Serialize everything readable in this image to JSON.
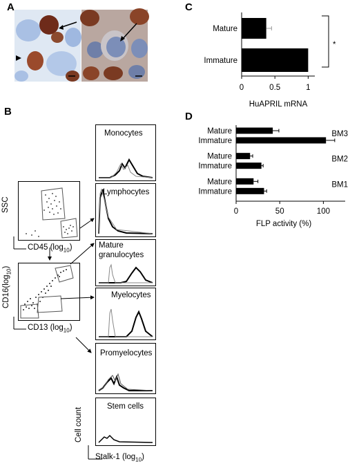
{
  "panels": {
    "a": "A",
    "b": "B",
    "c": "C",
    "d": "D"
  },
  "panel_b": {
    "dot_plot_1": {
      "ylabel": "SSC",
      "xlabel_main": "CD45 (log",
      "xlabel_sub": "10",
      "xlabel_tail": ")"
    },
    "dot_plot_2": {
      "ylabel_main": "CD16(log",
      "ylabel_sub": "10",
      "ylabel_tail": ")",
      "xlabel_main": "CD13 (log",
      "xlabel_sub": "10",
      "xlabel_tail": ")"
    },
    "histograms": [
      {
        "label": "Monocytes"
      },
      {
        "label": "Lymphocytes"
      },
      {
        "label_line1": "Mature",
        "label_line2": "granulocytes"
      },
      {
        "label": "Myelocytes"
      },
      {
        "label": "Promyelocytes"
      },
      {
        "label": "Stem cells"
      }
    ],
    "hist_ylabel": "Cell count",
    "hist_xlabel_main": "Stalk-1 (log",
    "hist_xlabel_sub": "10",
    "hist_xlabel_tail": ")"
  },
  "chart_data": [
    {
      "type": "bar",
      "panel": "C",
      "orientation": "horizontal",
      "categories": [
        "Mature",
        "Immature"
      ],
      "values": [
        0.37,
        1.0
      ],
      "errors": [
        0.08,
        0.0
      ],
      "xlabel": "HuAPRIL mRNA",
      "xlim": [
        0,
        1.1
      ],
      "xticks": [
        "0",
        "0.5",
        "1"
      ],
      "significance": "*"
    },
    {
      "type": "bar",
      "panel": "D",
      "orientation": "horizontal",
      "groups": [
        "BM3",
        "BM2",
        "BM1"
      ],
      "categories": [
        "Mature",
        "Immature",
        "Mature",
        "Immature",
        "Mature",
        "Immature"
      ],
      "values": [
        42,
        103,
        16,
        29,
        20,
        32
      ],
      "errors": [
        7,
        10,
        3,
        2,
        5,
        3
      ],
      "xlabel": "FLP activity (%)",
      "xlim": [
        0,
        125
      ],
      "xticks": [
        "0",
        "50",
        "100"
      ]
    }
  ],
  "colors": {
    "bar": "#000000",
    "stain_brown": "#7a3a22",
    "stain_blue": "#8aa8d8"
  }
}
